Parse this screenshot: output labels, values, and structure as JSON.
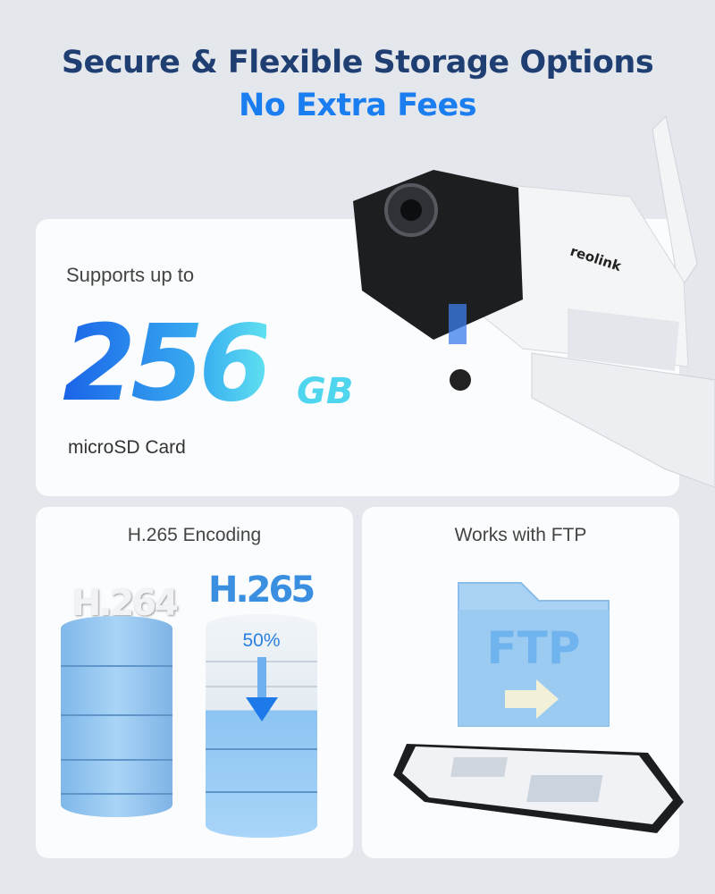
{
  "header": {
    "title": "Secure & Flexible Storage Options",
    "subtitle": "No Extra Fees"
  },
  "storage_card": {
    "prefix": "Supports up to",
    "capacity": "256",
    "unit": "GB",
    "media": "microSD Card"
  },
  "camera": {
    "brand": "reolink"
  },
  "encoding_card": {
    "title": "H.265 Encoding",
    "old_codec": "H.264",
    "new_codec": "H.265",
    "reduction": "50%"
  },
  "ftp_card": {
    "title": "Works with FTP",
    "folder_label": "FTP"
  },
  "colors": {
    "title": "#1f3f73",
    "accent": "#1a7ef0",
    "background": "#e4e7ec"
  }
}
